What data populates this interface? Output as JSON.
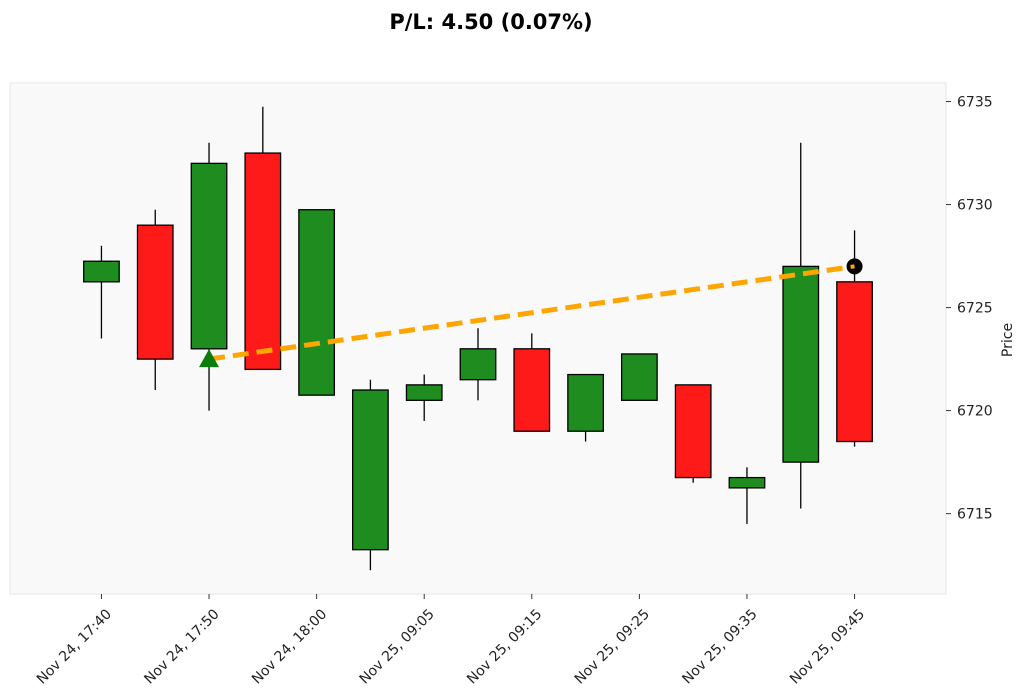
{
  "chart_data": {
    "type": "candlestick",
    "title": "P/L: 4.50 (0.07%)",
    "xlabel": "",
    "ylabel": "Price",
    "ylim": [
      6711.1,
      6735.9
    ],
    "yticks": [
      6715,
      6720,
      6725,
      6730,
      6735
    ],
    "xlim": [
      -1.7,
      15.7
    ],
    "xtick_indices": [
      0,
      2,
      4,
      6,
      8,
      10,
      12,
      14
    ],
    "xtick_labels": [
      "Nov 24, 17:40",
      "Nov 24, 17:50",
      "Nov 24, 18:00",
      "Nov 25, 09:05",
      "Nov 25, 09:15",
      "Nov 25, 09:25",
      "Nov 25, 09:35",
      "Nov 25, 09:45"
    ],
    "candles": [
      {
        "o": 6726.25,
        "h": 6728.0,
        "l": 6723.5,
        "c": 6727.25
      },
      {
        "o": 6729.0,
        "h": 6729.75,
        "l": 6721.0,
        "c": 6722.5
      },
      {
        "o": 6723.0,
        "h": 6733.0,
        "l": 6720.0,
        "c": 6732.0
      },
      {
        "o": 6732.5,
        "h": 6734.75,
        "l": 6722.0,
        "c": 6722.0
      },
      {
        "o": 6720.75,
        "h": 6729.75,
        "l": 6720.75,
        "c": 6729.75
      },
      {
        "o": 6713.25,
        "h": 6721.5,
        "l": 6712.25,
        "c": 6721.0
      },
      {
        "o": 6720.5,
        "h": 6721.75,
        "l": 6719.5,
        "c": 6721.25
      },
      {
        "o": 6721.5,
        "h": 6724.0,
        "l": 6720.5,
        "c": 6723.0
      },
      {
        "o": 6723.0,
        "h": 6723.75,
        "l": 6719.0,
        "c": 6719.0
      },
      {
        "o": 6719.0,
        "h": 6721.75,
        "l": 6718.5,
        "c": 6721.75
      },
      {
        "o": 6720.5,
        "h": 6722.75,
        "l": 6720.5,
        "c": 6722.75
      },
      {
        "o": 6721.25,
        "h": 6721.25,
        "l": 6716.5,
        "c": 6716.75
      },
      {
        "o": 6716.25,
        "h": 6717.25,
        "l": 6714.5,
        "c": 6716.75
      },
      {
        "o": 6717.5,
        "h": 6733.0,
        "l": 6715.25,
        "c": 6727.0
      },
      {
        "o": 6726.25,
        "h": 6728.75,
        "l": 6718.25,
        "c": 6718.5
      }
    ],
    "trade": {
      "entry_index": 2,
      "entry_price": 6722.5,
      "exit_index": 14,
      "exit_price": 6727.0,
      "pnl": 4.5,
      "pnl_pct": 0.07
    },
    "colors": {
      "up": "#1e8c1e",
      "down": "#ff1a1a",
      "trade_line": "#ffa500",
      "entry_marker": "#0a7d0a",
      "exit_marker": "#000000",
      "background": "#f9f9f9"
    }
  }
}
